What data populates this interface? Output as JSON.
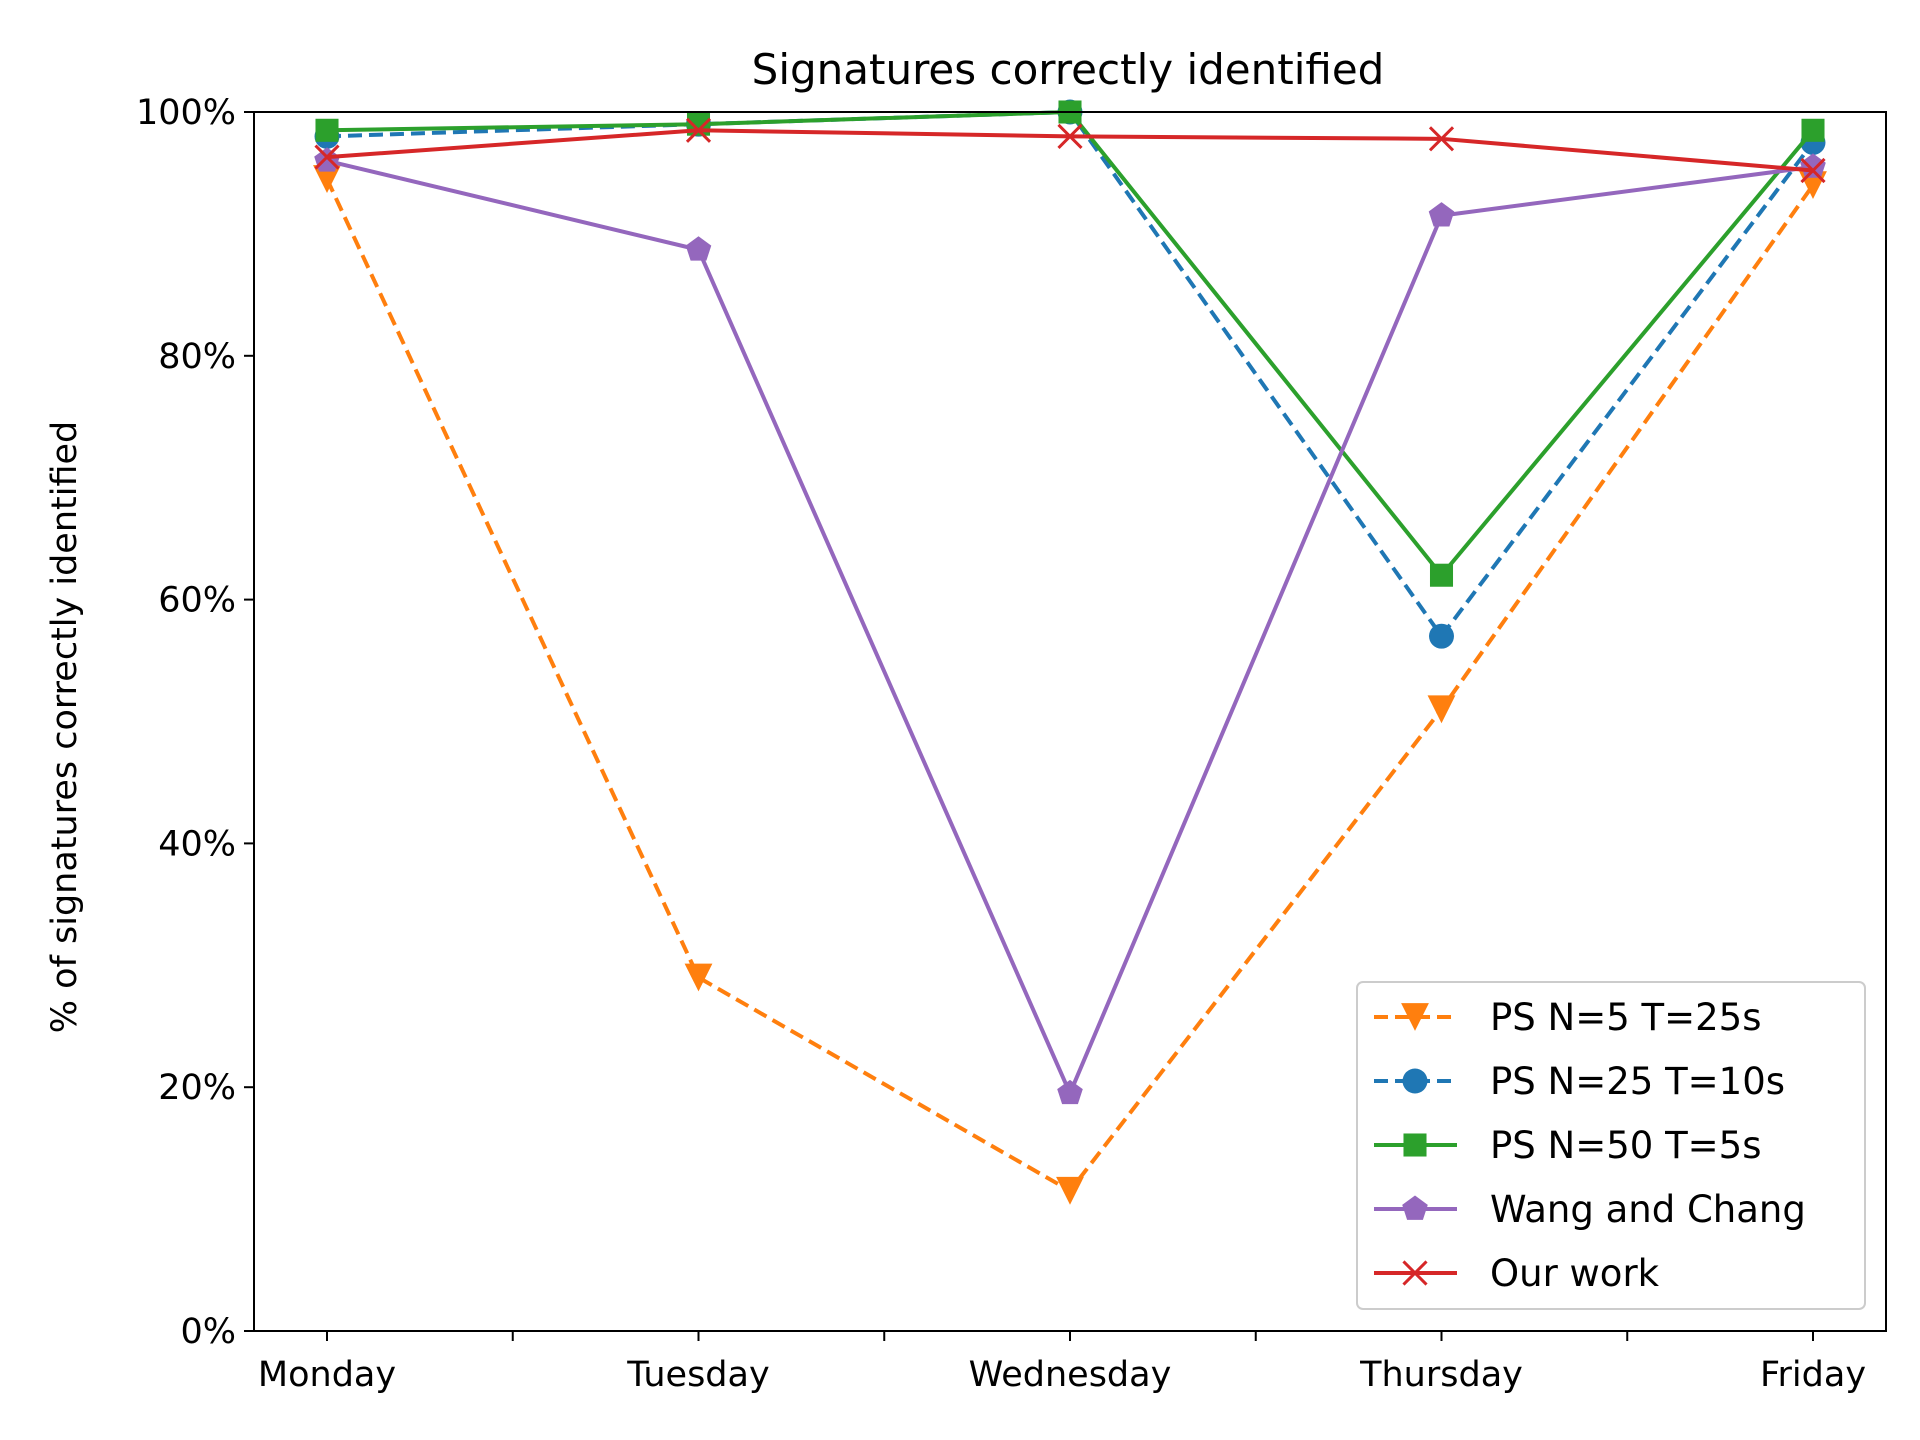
{
  "chart_data": {
    "type": "line",
    "title": "Signatures correctly identified",
    "xlabel": "",
    "ylabel": "% of signatures correctly identified",
    "categories": [
      "Monday",
      "Tuesday",
      "Wednesday",
      "Thursday",
      "Friday"
    ],
    "y_ticks": [
      "0%",
      "20%",
      "40%",
      "60%",
      "80%",
      "100%"
    ],
    "ylim": [
      0,
      100
    ],
    "grid": false,
    "legend_position": "lower-right",
    "series": [
      {
        "name": "PS N=5 T=25s",
        "values": [
          94.5,
          29,
          11.5,
          51,
          94
        ],
        "color": "#ff7f0e",
        "dash": true,
        "marker": "triangle-down"
      },
      {
        "name": "PS N=25 T=10s",
        "values": [
          98,
          99,
          100,
          57,
          97.5
        ],
        "color": "#1f77b4",
        "dash": true,
        "marker": "circle"
      },
      {
        "name": "PS N=50 T=5s",
        "values": [
          98.5,
          99,
          100,
          62,
          98.5
        ],
        "color": "#2ca02c",
        "dash": false,
        "marker": "square"
      },
      {
        "name": "Wang and Chang",
        "values": [
          96,
          88.7,
          19.5,
          91.5,
          95.5
        ],
        "color": "#9467bd",
        "dash": false,
        "marker": "pentagon"
      },
      {
        "name": "Our work",
        "values": [
          96.3,
          98.5,
          98,
          97.8,
          95.2
        ],
        "color": "#d62728",
        "dash": false,
        "marker": "x"
      }
    ]
  }
}
